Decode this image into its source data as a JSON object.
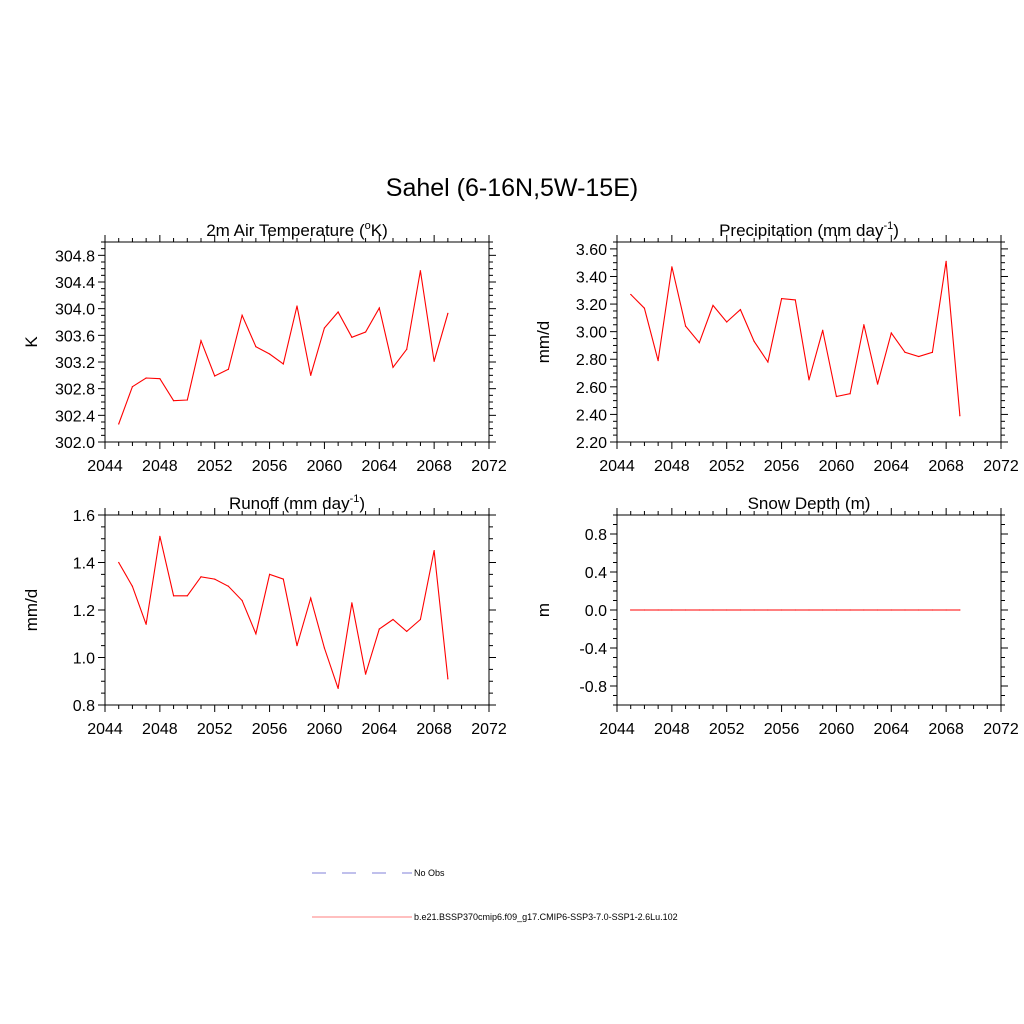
{
  "title": "Sahel (6-16N,5W-15E)",
  "colors": {
    "model": "#ff0000",
    "obs": "#9a9ae0",
    "axis": "#000000"
  },
  "legend": {
    "obs_label": "No Obs",
    "model_label": "b.e21.BSSP370cmip6.f09_g17.CMIP6-SSP3-7.0-SSP1-2.6Lu.102"
  },
  "chart_data": [
    {
      "type": "line",
      "title": "2m Air Temperature (°K)",
      "ylabel": "K",
      "xlim": [
        2044,
        2072
      ],
      "ylim": [
        302.0,
        305.0
      ],
      "xticks": [
        "2044",
        "2048",
        "2052",
        "2056",
        "2060",
        "2064",
        "2068",
        "2072"
      ],
      "yticks": [
        "302.0",
        "302.4",
        "302.8",
        "303.2",
        "303.6",
        "304.0",
        "304.4",
        "304.8"
      ],
      "x": [
        2045,
        2046,
        2047,
        2048,
        2049,
        2050,
        2051,
        2052,
        2053,
        2054,
        2055,
        2056,
        2057,
        2058,
        2059,
        2060,
        2061,
        2062,
        2063,
        2064,
        2065,
        2066,
        2067,
        2068,
        2069
      ],
      "series": [
        {
          "values": [
            302.27,
            302.83,
            302.96,
            302.95,
            302.62,
            302.63,
            303.52,
            302.99,
            303.09,
            303.9,
            303.43,
            303.32,
            303.17,
            304.04,
            303.0,
            303.71,
            303.95,
            303.57,
            303.65,
            304.01,
            303.12,
            303.39,
            304.57,
            303.21,
            303.93
          ]
        }
      ]
    },
    {
      "type": "line",
      "title": "Precipitation (mm day-1)",
      "ylabel": "mm/d",
      "xlim": [
        2044,
        2072
      ],
      "ylim": [
        2.2,
        3.65
      ],
      "xticks": [
        "2044",
        "2048",
        "2052",
        "2056",
        "2060",
        "2064",
        "2068",
        "2072"
      ],
      "yticks": [
        "2.20",
        "2.40",
        "2.60",
        "2.80",
        "3.00",
        "3.20",
        "3.40",
        "3.60"
      ],
      "x": [
        2045,
        2046,
        2047,
        2048,
        2049,
        2050,
        2051,
        2052,
        2053,
        2054,
        2055,
        2056,
        2057,
        2058,
        2059,
        2060,
        2061,
        2062,
        2063,
        2064,
        2065,
        2066,
        2067,
        2068,
        2069
      ],
      "series": [
        {
          "values": [
            3.27,
            3.17,
            2.79,
            3.47,
            3.04,
            2.92,
            3.19,
            3.07,
            3.16,
            2.93,
            2.78,
            3.24,
            3.23,
            2.65,
            3.01,
            2.53,
            2.55,
            3.05,
            2.62,
            2.99,
            2.85,
            2.82,
            2.85,
            3.51,
            2.39
          ]
        }
      ]
    },
    {
      "type": "line",
      "title": "Runoff (mm day-1)",
      "ylabel": "mm/d",
      "xlim": [
        2044,
        2072
      ],
      "ylim": [
        0.8,
        1.6
      ],
      "xticks": [
        "2044",
        "2048",
        "2052",
        "2056",
        "2060",
        "2064",
        "2068",
        "2072"
      ],
      "yticks": [
        "0.8",
        "1.0",
        "1.2",
        "1.4",
        "1.6"
      ],
      "x": [
        2045,
        2046,
        2047,
        2048,
        2049,
        2050,
        2051,
        2052,
        2053,
        2054,
        2055,
        2056,
        2057,
        2058,
        2059,
        2060,
        2061,
        2062,
        2063,
        2064,
        2065,
        2066,
        2067,
        2068,
        2069
      ],
      "series": [
        {
          "values": [
            1.4,
            1.3,
            1.14,
            1.51,
            1.26,
            1.26,
            1.34,
            1.33,
            1.3,
            1.24,
            1.1,
            1.35,
            1.33,
            1.05,
            1.25,
            1.04,
            0.87,
            1.23,
            0.93,
            1.12,
            1.16,
            1.11,
            1.16,
            1.45,
            0.91
          ]
        }
      ]
    },
    {
      "type": "line",
      "title": "Snow Depth (m)",
      "ylabel": "m",
      "xlim": [
        2044,
        2072
      ],
      "ylim": [
        -1.0,
        1.0
      ],
      "xticks": [
        "2044",
        "2048",
        "2052",
        "2056",
        "2060",
        "2064",
        "2068",
        "2072"
      ],
      "yticks": [
        "-0.8",
        "-0.4",
        "0.0",
        "0.4",
        "0.8"
      ],
      "x": [
        2045,
        2046,
        2047,
        2048,
        2049,
        2050,
        2051,
        2052,
        2053,
        2054,
        2055,
        2056,
        2057,
        2058,
        2059,
        2060,
        2061,
        2062,
        2063,
        2064,
        2065,
        2066,
        2067,
        2068,
        2069
      ],
      "series": [
        {
          "values": [
            0,
            0,
            0,
            0,
            0,
            0,
            0,
            0,
            0,
            0,
            0,
            0,
            0,
            0,
            0,
            0,
            0,
            0,
            0,
            0,
            0,
            0,
            0,
            0,
            0
          ]
        }
      ]
    }
  ]
}
